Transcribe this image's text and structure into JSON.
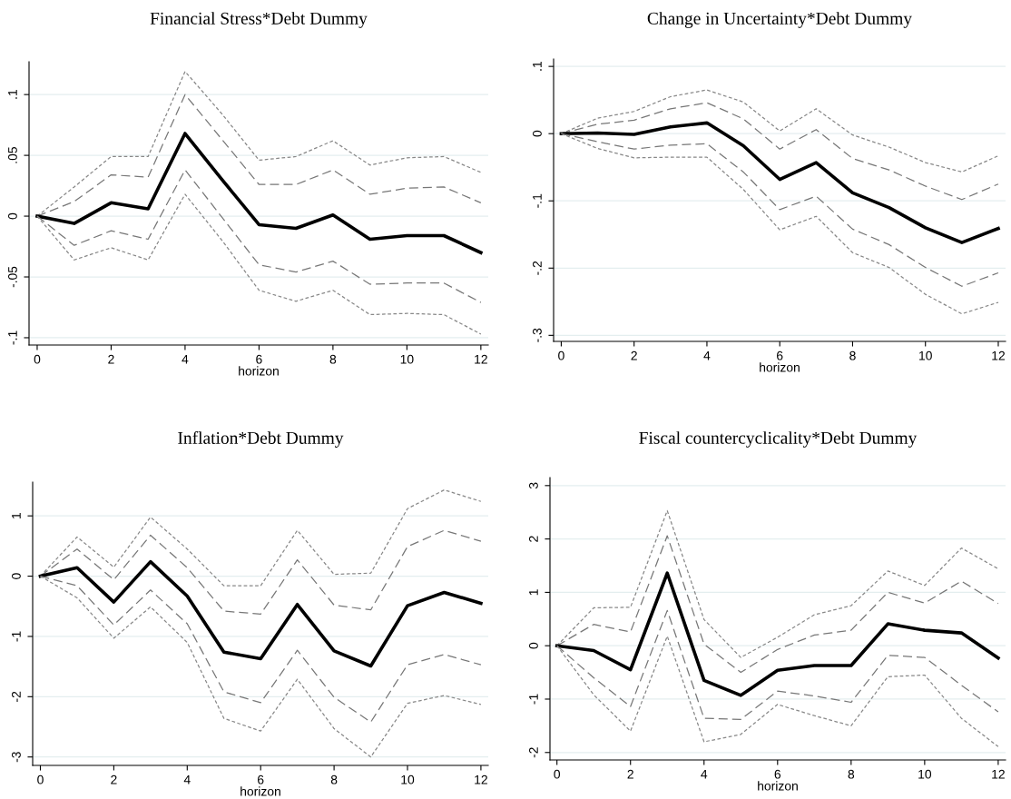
{
  "chart_data": [
    {
      "type": "line",
      "title": "Financial Stress*Debt Dummy",
      "xlabel": "horizon",
      "grid": "y",
      "marker": "none",
      "x": [
        0,
        1,
        2,
        3,
        4,
        5,
        6,
        7,
        8,
        9,
        10,
        11,
        12
      ],
      "xlim": [
        -0.22,
        12.2
      ],
      "xticks": [
        0,
        2,
        4,
        6,
        8,
        10,
        12
      ],
      "ylim": [
        -0.106,
        0.127
      ],
      "yticks": [
        {
          "value": -0.1,
          "label": "-.1"
        },
        {
          "value": -0.05,
          "label": "-.05"
        },
        0,
        {
          "value": 0.05,
          "label": ".05"
        },
        {
          "value": 0.1,
          "label": ".1"
        }
      ],
      "series": [
        {
          "color": "#888888",
          "line_style": "dotted",
          "values": [
            0,
            0.024,
            0.049,
            0.049,
            0.119,
            0.084,
            0.046,
            0.049,
            0.062,
            0.042,
            0.048,
            0.049,
            0.036
          ]
        },
        {
          "color": "#777777",
          "line_style": "dashed",
          "values": [
            0,
            0.012,
            0.034,
            0.032,
            0.1,
            0.063,
            0.026,
            0.026,
            0.038,
            0.018,
            0.023,
            0.024,
            0.011
          ]
        },
        {
          "color": "#000000",
          "line_style": "solid",
          "values": [
            0,
            -0.006,
            0.011,
            0.006,
            0.068,
            0.03,
            -0.007,
            -0.01,
            0.001,
            -0.019,
            -0.016,
            -0.016,
            -0.03
          ]
        },
        {
          "color": "#777777",
          "line_style": "dashed",
          "values": [
            0,
            -0.024,
            -0.012,
            -0.019,
            0.038,
            -0.001,
            -0.04,
            -0.046,
            -0.037,
            -0.056,
            -0.055,
            -0.055,
            -0.071
          ]
        },
        {
          "color": "#888888",
          "line_style": "dotted",
          "values": [
            0,
            -0.036,
            -0.026,
            -0.036,
            0.018,
            -0.02,
            -0.061,
            -0.07,
            -0.061,
            -0.081,
            -0.08,
            -0.081,
            -0.097
          ]
        }
      ]
    },
    {
      "type": "line",
      "title": "Change in Uncertainty*Debt Dummy",
      "xlabel": "horizon",
      "grid": "y",
      "marker": "none",
      "x": [
        0,
        1,
        2,
        3,
        4,
        5,
        6,
        7,
        8,
        9,
        10,
        11,
        12
      ],
      "xlim": [
        -0.21,
        12.2
      ],
      "xticks": [
        0,
        2,
        4,
        6,
        8,
        10,
        12
      ],
      "ylim": [
        -0.309,
        0.111
      ],
      "yticks": [
        {
          "value": -0.3,
          "label": "-.3"
        },
        {
          "value": -0.2,
          "label": "-.2"
        },
        {
          "value": -0.1,
          "label": "-.1"
        },
        0,
        {
          "value": 0.1,
          "label": ".1"
        }
      ],
      "series": [
        {
          "color": "#888888",
          "line_style": "dotted",
          "values": [
            0,
            0.023,
            0.033,
            0.055,
            0.065,
            0.047,
            0.004,
            0.037,
            -0.002,
            -0.02,
            -0.043,
            -0.057,
            -0.033
          ]
        },
        {
          "color": "#777777",
          "line_style": "dashed",
          "values": [
            0,
            0.014,
            0.02,
            0.037,
            0.046,
            0.022,
            -0.023,
            0.006,
            -0.037,
            -0.054,
            -0.078,
            -0.098,
            -0.075
          ]
        },
        {
          "color": "#000000",
          "line_style": "solid",
          "values": [
            0,
            0.001,
            -0.001,
            0.01,
            0.016,
            -0.018,
            -0.068,
            -0.043,
            -0.088,
            -0.11,
            -0.14,
            -0.162,
            -0.141
          ]
        },
        {
          "color": "#777777",
          "line_style": "dashed",
          "values": [
            0,
            -0.012,
            -0.023,
            -0.017,
            -0.015,
            -0.057,
            -0.113,
            -0.093,
            -0.142,
            -0.165,
            -0.199,
            -0.227,
            -0.207
          ]
        },
        {
          "color": "#888888",
          "line_style": "dotted",
          "values": [
            0,
            -0.022,
            -0.036,
            -0.035,
            -0.035,
            -0.083,
            -0.143,
            -0.123,
            -0.177,
            -0.199,
            -0.239,
            -0.268,
            -0.251
          ]
        }
      ]
    },
    {
      "type": "line",
      "title": "Inflation*Debt Dummy",
      "xlabel": "horizon",
      "grid": "y",
      "marker": "none",
      "x": [
        0,
        1,
        2,
        3,
        4,
        5,
        6,
        7,
        8,
        9,
        10,
        11,
        12
      ],
      "xlim": [
        -0.21,
        12.2
      ],
      "xticks": [
        0,
        2,
        4,
        6,
        8,
        10,
        12
      ],
      "ylim": [
        -3.14,
        1.56
      ],
      "yticks": [
        -3,
        -2,
        -1,
        0,
        1
      ],
      "series": [
        {
          "color": "#888888",
          "line_style": "dotted",
          "values": [
            0,
            0.65,
            0.15,
            0.98,
            0.45,
            -0.16,
            -0.16,
            0.76,
            0.03,
            0.05,
            1.12,
            1.43,
            1.24
          ]
        },
        {
          "color": "#777777",
          "line_style": "dashed",
          "values": [
            0,
            0.45,
            -0.06,
            0.68,
            0.14,
            -0.58,
            -0.63,
            0.27,
            -0.48,
            -0.56,
            0.49,
            0.76,
            0.58
          ]
        },
        {
          "color": "#000000",
          "line_style": "solid",
          "values": [
            0,
            0.14,
            -0.43,
            0.24,
            -0.33,
            -1.26,
            -1.37,
            -0.47,
            -1.24,
            -1.49,
            -0.49,
            -0.27,
            -0.45
          ]
        },
        {
          "color": "#777777",
          "line_style": "dashed",
          "values": [
            0,
            -0.16,
            -0.81,
            -0.23,
            -0.79,
            -1.92,
            -2.1,
            -1.23,
            -2.01,
            -2.42,
            -1.47,
            -1.3,
            -1.47
          ]
        },
        {
          "color": "#888888",
          "line_style": "dotted",
          "values": [
            0,
            -0.36,
            -1.03,
            -0.51,
            -1.1,
            -2.36,
            -2.57,
            -1.71,
            -2.53,
            -3.0,
            -2.11,
            -1.98,
            -2.13
          ]
        }
      ]
    },
    {
      "type": "line",
      "title": "Fiscal countercyclicality*Debt Dummy",
      "xlabel": "horizon",
      "grid": "y",
      "marker": "none",
      "x": [
        0,
        1,
        2,
        3,
        4,
        5,
        6,
        7,
        8,
        9,
        10,
        11,
        12
      ],
      "xlim": [
        -0.19,
        12.2
      ],
      "xticks": [
        0,
        2,
        4,
        6,
        8,
        10,
        12
      ],
      "ylim": [
        -2.14,
        3.15
      ],
      "yticks": [
        -2,
        -1,
        0,
        1,
        2,
        3
      ],
      "series": [
        {
          "color": "#888888",
          "line_style": "dotted",
          "values": [
            0,
            0.71,
            0.72,
            2.53,
            0.49,
            -0.22,
            0.16,
            0.58,
            0.75,
            1.4,
            1.13,
            1.83,
            1.44
          ]
        },
        {
          "color": "#777777",
          "line_style": "dashed",
          "values": [
            0,
            0.4,
            0.26,
            2.06,
            0.03,
            -0.5,
            -0.07,
            0.2,
            0.29,
            1.0,
            0.8,
            1.21,
            0.79
          ]
        },
        {
          "color": "#000000",
          "line_style": "solid",
          "values": [
            0,
            -0.09,
            -0.45,
            1.36,
            -0.65,
            -0.93,
            -0.46,
            -0.37,
            -0.37,
            0.41,
            0.29,
            0.24,
            -0.23
          ]
        },
        {
          "color": "#777777",
          "line_style": "dashed",
          "values": [
            0,
            -0.6,
            -1.14,
            0.66,
            -1.36,
            -1.38,
            -0.85,
            -0.94,
            -1.06,
            -0.18,
            -0.22,
            -0.74,
            -1.24
          ]
        },
        {
          "color": "#888888",
          "line_style": "dotted",
          "values": [
            0,
            -0.92,
            -1.6,
            0.18,
            -1.8,
            -1.66,
            -1.1,
            -1.31,
            -1.5,
            -0.58,
            -0.55,
            -1.36,
            -1.89
          ]
        }
      ]
    }
  ]
}
